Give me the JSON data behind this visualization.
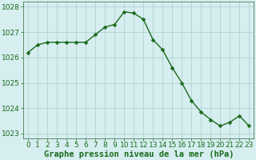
{
  "x": [
    0,
    1,
    2,
    3,
    4,
    5,
    6,
    7,
    8,
    9,
    10,
    11,
    12,
    13,
    14,
    15,
    16,
    17,
    18,
    19,
    20,
    21,
    22,
    23
  ],
  "y": [
    1026.2,
    1026.5,
    1026.6,
    1026.6,
    1026.6,
    1026.6,
    1026.6,
    1026.9,
    1027.2,
    1027.3,
    1027.8,
    1027.75,
    1027.5,
    1026.7,
    1026.3,
    1025.6,
    1025.0,
    1024.3,
    1023.85,
    1023.55,
    1023.3,
    1023.45,
    1023.7,
    1023.3
  ],
  "line_color": "#1a6b1a",
  "marker": "D",
  "markersize": 2.5,
  "linewidth": 1.0,
  "bg_color": "#d6eef0",
  "grid_color": "#aacccc",
  "xlabel": "Graphe pression niveau de la mer (hPa)",
  "xlabel_color": "#1a6b1a",
  "xlabel_fontsize": 7.5,
  "tick_color": "#1a6b1a",
  "tick_fontsize": 6.5,
  "ylim": [
    1022.8,
    1028.2
  ],
  "yticks": [
    1023,
    1024,
    1025,
    1026,
    1027,
    1028
  ],
  "xticks": [
    0,
    1,
    2,
    3,
    4,
    5,
    6,
    7,
    8,
    9,
    10,
    11,
    12,
    13,
    14,
    15,
    16,
    17,
    18,
    19,
    20,
    21,
    22,
    23
  ],
  "spine_color": "#336633",
  "figsize": [
    3.2,
    2.0
  ],
  "dpi": 100
}
